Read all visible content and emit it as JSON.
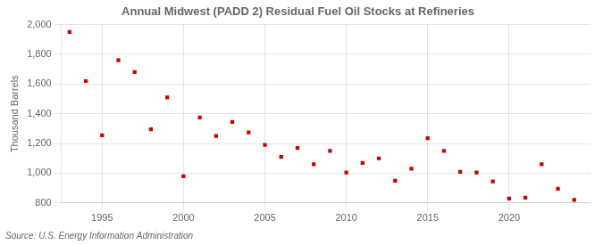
{
  "chart_data": {
    "type": "scatter",
    "title": "Annual Midwest (PADD 2) Residual Fuel Oil Stocks at Refineries",
    "ylabel": "Thousand Barrels",
    "annotation": "Source: U.S. Energy Information Administration",
    "x": [
      1993,
      1994,
      1995,
      1996,
      1997,
      1998,
      1999,
      2000,
      2001,
      2002,
      2003,
      2004,
      2005,
      2006,
      2007,
      2008,
      2009,
      2010,
      2011,
      2012,
      2013,
      2014,
      2015,
      2016,
      2017,
      2018,
      2019,
      2020,
      2021,
      2022,
      2023,
      2024
    ],
    "values": [
      1950,
      1620,
      1255,
      1760,
      1680,
      1295,
      1510,
      980,
      1375,
      1250,
      1345,
      1275,
      1190,
      1110,
      1170,
      1060,
      1150,
      1005,
      1070,
      1100,
      950,
      1030,
      1235,
      1150,
      1010,
      1005,
      945,
      830,
      835,
      1060,
      895,
      820
    ],
    "color": "#cc0000",
    "marker": "square",
    "xlim": [
      1992.5,
      2025
    ],
    "xticks": [
      1995,
      2000,
      2005,
      2010,
      2015,
      2020
    ],
    "ylim": [
      800,
      2000
    ],
    "yticks": [
      800,
      {
        "value": 1000,
        "label": "1,000"
      },
      {
        "value": 1200,
        "label": "1,200"
      },
      {
        "value": 1400,
        "label": "1,400"
      },
      {
        "value": 1600,
        "label": "1,600"
      },
      {
        "value": 1800,
        "label": "1,800"
      },
      {
        "value": 2000,
        "label": "2,000"
      }
    ],
    "grid": true
  }
}
